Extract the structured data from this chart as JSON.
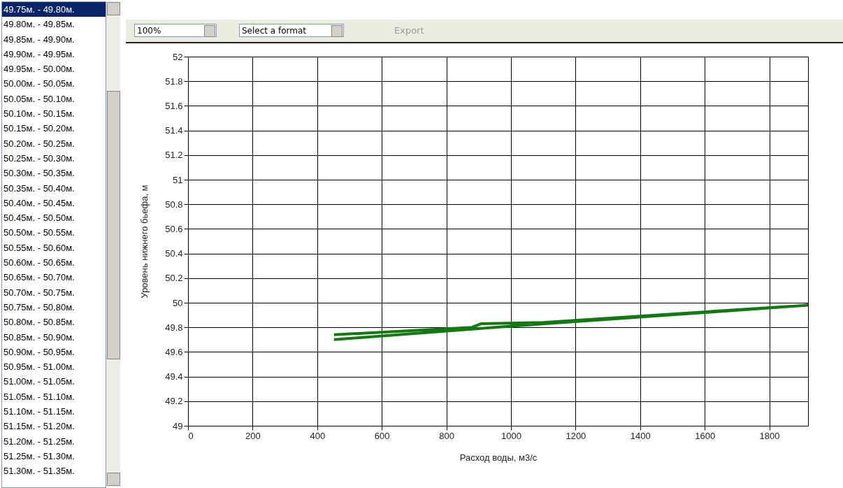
{
  "chart_data": [
    {
      "type": "other",
      "annotations": [
        "49.75м. - 49.80м.",
        "49.80м. - 49.85м.",
        "49.85м. - 49.90м.",
        "49.90м. - 49.95м.",
        "49.95м. - 50.00м.",
        "50.00м. - 50.05м.",
        "50.05м. - 50.10м.",
        "50.10м. - 50.15м.",
        "50.15м. - 50.20м.",
        "50.20м. - 50.25м.",
        "50.25м. - 50.30м.",
        "50.30м. - 50.35м.",
        "50.35м. - 50.40м.",
        "50.40м. - 50.45м.",
        "50.45м. - 50.50м.",
        "50.50м. - 50.55м.",
        "50.55м. - 50.60м.",
        "50.60м. - 50.65м.",
        "50.65м. - 50.70м.",
        "50.70м. - 50.75м.",
        "50.75м. - 50.80м.",
        "50.80м. - 50.85м.",
        "50.85м. - 50.90м.",
        "50.90м. - 50.95м.",
        "50.95м. - 51.00м.",
        "51.00м. - 51.05м.",
        "51.05м. - 51.10м.",
        "51.10м. - 51.15м.",
        "51.15м. - 51.20м.",
        "51.20м. - 51.25м.",
        "51.25м. - 51.30м.",
        "51.30м. - 51.35м."
      ]
    },
    {
      "type": "other",
      "annotations": [
        "100%",
        "Select a format",
        "Export"
      ]
    },
    {
      "type": "line",
      "xlabel": "Расход воды, м3/с",
      "ylabel": "Уровень нижнего бьефа, м",
      "grid": true,
      "xlim": [
        0,
        1920
      ],
      "xticks": [
        0,
        200,
        400,
        600,
        800,
        1000,
        1200,
        1400,
        1600,
        1800
      ],
      "ylim": [
        49,
        52
      ],
      "yticks": [
        49,
        49.2,
        49.4,
        49.6,
        49.8,
        50,
        50.2,
        50.4,
        50.6,
        50.8,
        51,
        51.2,
        51.4,
        51.6,
        51.8,
        52
      ],
      "series": [
        {
          "color": "#137a13",
          "x": [
            452,
            800,
            1000,
            1600,
            1920,
            1100,
            908,
            880,
            452
          ],
          "values": [
            49.7,
            49.77,
            49.81,
            49.92,
            49.98,
            49.84,
            49.83,
            49.8,
            49.74
          ]
        }
      ]
    }
  ]
}
